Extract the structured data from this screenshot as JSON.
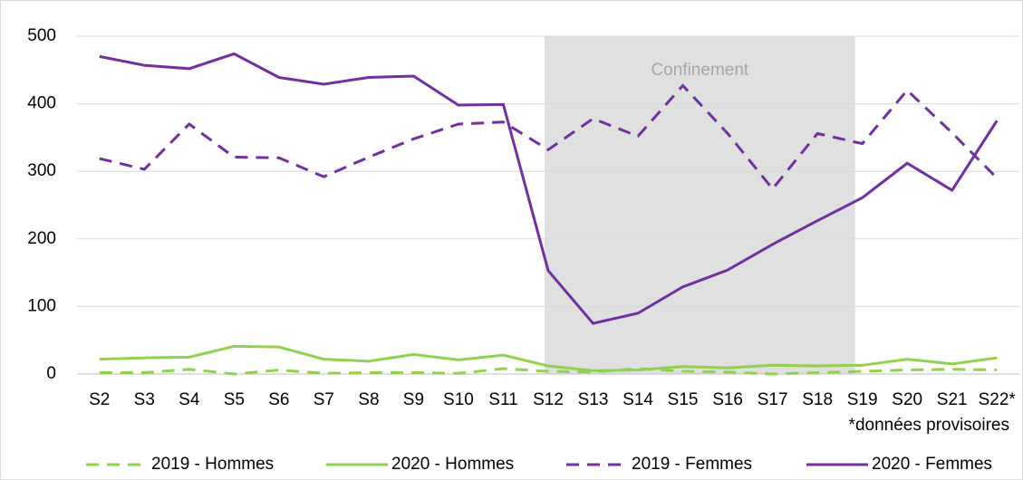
{
  "chart_data": {
    "type": "line",
    "categories": [
      "S2",
      "S3",
      "S4",
      "S5",
      "S6",
      "S7",
      "S8",
      "S9",
      "S10",
      "S11",
      "S12",
      "S13",
      "S14",
      "S15",
      "S16",
      "S17",
      "S18",
      "S19",
      "S20",
      "S21",
      "S22*"
    ],
    "series": [
      {
        "name": "2019 - Hommes",
        "color": "#92d050",
        "style": "dashed",
        "values": [
          2,
          2,
          7,
          0,
          6,
          1,
          2,
          2,
          1,
          8,
          4,
          3,
          8,
          4,
          3,
          0,
          2,
          4,
          6,
          7,
          6
        ]
      },
      {
        "name": "2020 - Hommes",
        "color": "#92d050",
        "style": "solid",
        "values": [
          22,
          24,
          25,
          41,
          40,
          22,
          19,
          29,
          21,
          28,
          12,
          5,
          6,
          11,
          9,
          13,
          12,
          13,
          22,
          15,
          24
        ]
      },
      {
        "name": "2019 - Femmes",
        "color": "#7030a0",
        "style": "dashed",
        "values": [
          319,
          303,
          370,
          321,
          320,
          292,
          321,
          348,
          370,
          373,
          332,
          378,
          352,
          427,
          356,
          274,
          356,
          341,
          420,
          357,
          290
        ]
      },
      {
        "name": "2020 - Femmes",
        "color": "#7030a0",
        "style": "solid",
        "values": [
          470,
          457,
          452,
          474,
          439,
          429,
          439,
          441,
          398,
          399,
          153,
          75,
          90,
          129,
          154,
          192,
          227,
          261,
          312,
          272,
          375
        ]
      }
    ],
    "ylim": [
      0,
      500
    ],
    "yticks": [
      0,
      100,
      200,
      300,
      400,
      500
    ],
    "grid": true,
    "shade": {
      "from": "S12",
      "to": "S19",
      "label": "Confinement",
      "color": "#e0e0e0"
    },
    "note": "*données provisoires",
    "legend": "bottom"
  }
}
